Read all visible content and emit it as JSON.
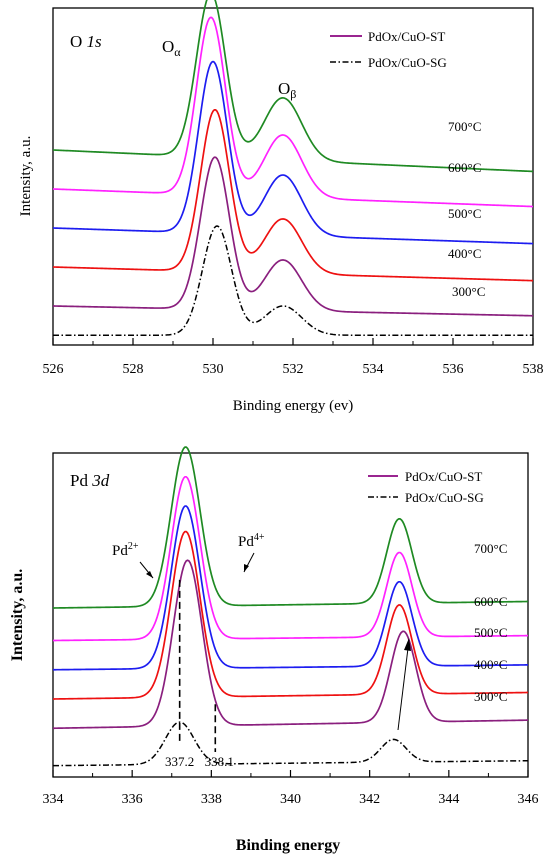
{
  "chart_data": [
    {
      "type": "line",
      "panel_label": "O 1s",
      "panel_label_parts": {
        "element": "O",
        "orbital": "1s"
      },
      "xlabel": "Binding energy (ev)",
      "ylabel": "Intensity, a.u.",
      "xlim": [
        526,
        538
      ],
      "x_ticks": [
        "526",
        "528",
        "530",
        "532",
        "534",
        "536",
        "538"
      ],
      "legend": {
        "placement": "top-right",
        "entries": [
          {
            "label": "PdOx/CuO-ST",
            "color": "#9a2590",
            "style": "solid"
          },
          {
            "label": "PdOx/CuO-SG",
            "color": "#000000",
            "style": "dash-dot"
          }
        ]
      },
      "annotations": [
        {
          "base": "O",
          "sub": "α",
          "x": 529.4
        },
        {
          "base": "O",
          "sub": "β",
          "x": 532.2
        }
      ],
      "series": [
        {
          "name": "700°C",
          "color": "#1f8a23",
          "style": "solid",
          "baseline": 5.0,
          "end": 4.45,
          "peaks": [
            [
              529.95,
              4.2,
              0.85
            ],
            [
              531.75,
              1.6,
              1.1
            ]
          ]
        },
        {
          "name": "600°C",
          "color": "#ff22ff",
          "style": "solid",
          "baseline": 4.0,
          "end": 3.55,
          "peaks": [
            [
              529.95,
              4.55,
              0.85
            ],
            [
              531.75,
              1.6,
              1.1
            ]
          ]
        },
        {
          "name": "500°C",
          "color": "#1d1df0",
          "style": "solid",
          "baseline": 3.0,
          "end": 2.6,
          "peaks": [
            [
              530.0,
              4.4,
              0.85
            ],
            [
              531.75,
              1.55,
              1.1
            ]
          ]
        },
        {
          "name": "400°C",
          "color": "#ee1111",
          "style": "solid",
          "baseline": 2.0,
          "end": 1.65,
          "peaks": [
            [
              530.05,
              4.15,
              0.85
            ],
            [
              531.75,
              1.4,
              1.1
            ]
          ]
        },
        {
          "name": "300°C",
          "color": "#8a1f7e",
          "style": "solid",
          "baseline": 1.0,
          "end": 0.75,
          "peaks": [
            [
              530.05,
              3.9,
              0.85
            ],
            [
              531.75,
              1.3,
              1.1
            ]
          ]
        },
        {
          "name": "PdOx/CuO-SG",
          "color": "#000000",
          "style": "dash-dot",
          "baseline": 0.25,
          "end": 0.25,
          "peaks": [
            [
              530.1,
              2.8,
              0.85
            ],
            [
              531.75,
              0.75,
              1.1
            ]
          ]
        }
      ]
    },
    {
      "type": "line",
      "panel_label": "Pd 3d",
      "panel_label_parts": {
        "element": "Pd",
        "orbital": "3d"
      },
      "xlabel": "Binding energy",
      "ylabel": "Intensity, a.u.",
      "xlim": [
        334,
        346
      ],
      "x_ticks": [
        "334",
        "336",
        "338",
        "340",
        "342",
        "344",
        "346"
      ],
      "legend": {
        "placement": "top-right",
        "entries": [
          {
            "label": "PdOx/CuO-ST",
            "color": "#9a2590",
            "style": "solid"
          },
          {
            "label": "PdOx/CuO-SG",
            "color": "#000000",
            "style": "dash-dot"
          }
        ]
      },
      "annotations": [
        {
          "base": "Pd",
          "sup": "2+",
          "x": 337.0
        },
        {
          "base": "Pd",
          "sup": "4+",
          "x": 338.7
        }
      ],
      "reference_lines": [
        {
          "label": "337.2",
          "x": 337.2
        },
        {
          "label": "338.1",
          "x": 338.1
        }
      ],
      "series": [
        {
          "name": "700°C",
          "color": "#1f8a23",
          "style": "solid",
          "baseline": 5.2,
          "end": 5.4,
          "peaks": [
            [
              337.35,
              4.9,
              0.85
            ],
            [
              342.75,
              2.6,
              0.75
            ]
          ]
        },
        {
          "name": "600°C",
          "color": "#ff22ff",
          "style": "solid",
          "baseline": 4.2,
          "end": 4.35,
          "peaks": [
            [
              337.35,
              5.0,
              0.85
            ],
            [
              342.75,
              2.6,
              0.75
            ]
          ]
        },
        {
          "name": "500°C",
          "color": "#1d1df0",
          "style": "solid",
          "baseline": 3.3,
          "end": 3.45,
          "peaks": [
            [
              337.35,
              5.0,
              0.85
            ],
            [
              342.75,
              2.6,
              0.75
            ]
          ]
        },
        {
          "name": "400°C",
          "color": "#ee1111",
          "style": "solid",
          "baseline": 2.4,
          "end": 2.6,
          "peaks": [
            [
              337.35,
              5.1,
              0.85
            ],
            [
              342.75,
              2.75,
              0.75
            ]
          ]
        },
        {
          "name": "300°C",
          "color": "#8a1f7e",
          "style": "solid",
          "baseline": 1.5,
          "end": 1.75,
          "peaks": [
            [
              337.4,
              5.1,
              0.85
            ],
            [
              342.85,
              2.8,
              0.75
            ]
          ]
        },
        {
          "name": "PdOx/CuO-SG",
          "color": "#000000",
          "style": "dash-dot",
          "baseline": 0.35,
          "end": 0.5,
          "peaks": [
            [
              337.2,
              1.3,
              0.85
            ],
            [
              342.6,
              0.7,
              0.75
            ]
          ]
        }
      ]
    }
  ]
}
